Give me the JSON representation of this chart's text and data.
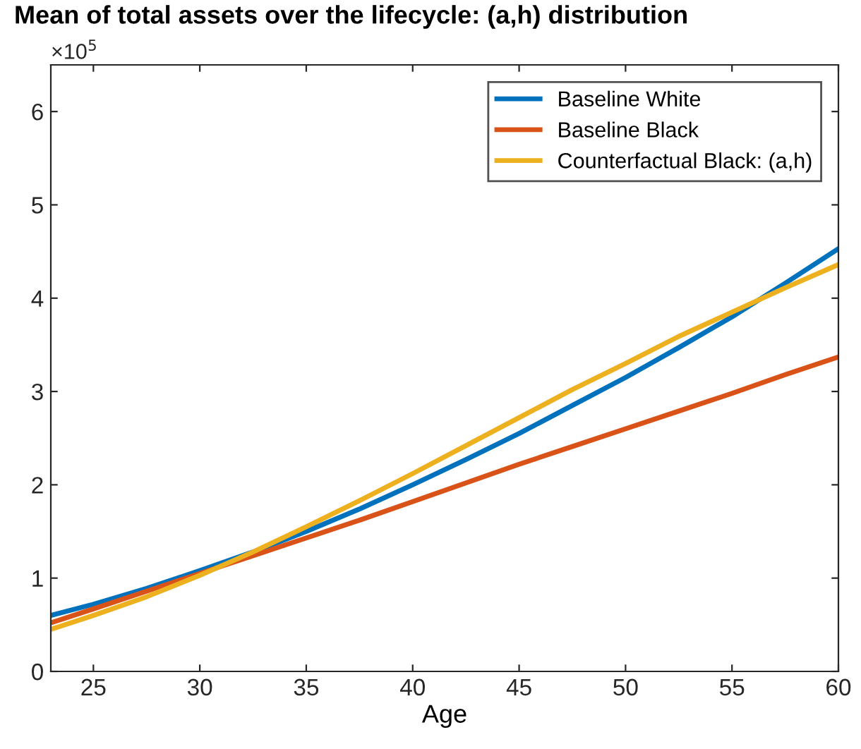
{
  "chart_data": {
    "type": "line",
    "title": "Mean of total assets over the lifecycle: (a,h) distribution",
    "xlabel": "Age",
    "annotations": [
      "×10$^{5}$"
    ],
    "x": [
      23,
      25,
      27.5,
      30,
      32.5,
      35,
      37.5,
      40,
      42.5,
      45,
      47.5,
      50,
      52.5,
      55,
      57.5,
      60
    ],
    "series": [
      {
        "name": "Baseline White",
        "color": "#0072bd",
        "values": [
          0.6,
          0.72,
          0.89,
          1.08,
          1.28,
          1.5,
          1.74,
          2.0,
          2.27,
          2.55,
          2.85,
          3.15,
          3.47,
          3.8,
          4.16,
          4.53
        ]
      },
      {
        "name": "Baseline Black",
        "color": "#d95319",
        "values": [
          0.52,
          0.67,
          0.86,
          1.05,
          1.24,
          1.43,
          1.62,
          1.82,
          2.02,
          2.22,
          2.41,
          2.6,
          2.79,
          2.98,
          3.18,
          3.37
        ]
      },
      {
        "name": "Counterfactual Black: (a,h)",
        "color": "#edb120",
        "values": [
          0.45,
          0.6,
          0.8,
          1.03,
          1.28,
          1.55,
          1.83,
          2.12,
          2.42,
          2.72,
          3.02,
          3.3,
          3.59,
          3.85,
          4.11,
          4.36
        ]
      }
    ],
    "xlim": [
      23,
      60
    ],
    "xticks": [
      25,
      30,
      35,
      40,
      45,
      50,
      55,
      60
    ],
    "ylim": [
      0,
      6.5
    ],
    "yticks": [
      0,
      1,
      2,
      3,
      4,
      5,
      6
    ],
    "legend": "top right",
    "grid": false,
    "marker": "none",
    "line_style": "solid"
  }
}
